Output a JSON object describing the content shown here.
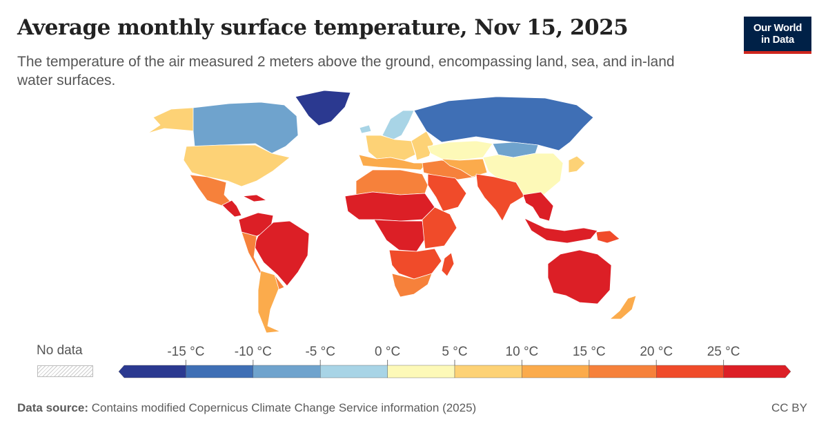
{
  "header": {
    "title": "Average monthly surface temperature, Nov 15, 2025",
    "subtitle": "The temperature of the air measured 2 meters above the ground, encompassing land, sea, and in-land water surfaces."
  },
  "logo": {
    "line1": "Our World",
    "line2": "in Data"
  },
  "legend": {
    "no_data_label": "No data",
    "ticks": [
      "-15 °C",
      "-10 °C",
      "-5 °C",
      "0 °C",
      "5 °C",
      "10 °C",
      "15 °C",
      "20 °C",
      "25 °C"
    ],
    "bin_colors": [
      "#2b3990",
      "#3f6fb5",
      "#6fa3cd",
      "#a8d4e6",
      "#fdf9b8",
      "#fdd276",
      "#fbab4c",
      "#f6813b",
      "#f04b2a",
      "#dc1f26"
    ]
  },
  "regions": [
    {
      "name": "Greenland",
      "bin": 0
    },
    {
      "name": "Canada",
      "bin": 2
    },
    {
      "name": "Alaska",
      "bin": 5
    },
    {
      "name": "United States",
      "bin": 5
    },
    {
      "name": "Mexico",
      "bin": 7
    },
    {
      "name": "Central America",
      "bin": 9
    },
    {
      "name": "Caribbean",
      "bin": 9
    },
    {
      "name": "Brazil",
      "bin": 9
    },
    {
      "name": "Northern South America",
      "bin": 9
    },
    {
      "name": "Andes",
      "bin": 7
    },
    {
      "name": "Southern South America",
      "bin": 6
    },
    {
      "name": "Iceland",
      "bin": 3
    },
    {
      "name": "Scandinavia",
      "bin": 3
    },
    {
      "name": "Western Europe",
      "bin": 5
    },
    {
      "name": "Southern Europe",
      "bin": 6
    },
    {
      "name": "Eastern Europe",
      "bin": 5
    },
    {
      "name": "Russia",
      "bin": 1
    },
    {
      "name": "Kazakhstan",
      "bin": 4
    },
    {
      "name": "Mongolia",
      "bin": 2
    },
    {
      "name": "China",
      "bin": 4
    },
    {
      "name": "Japan",
      "bin": 5
    },
    {
      "name": "Middle East",
      "bin": 7
    },
    {
      "name": "Arabian Peninsula",
      "bin": 8
    },
    {
      "name": "Central Asia",
      "bin": 6
    },
    {
      "name": "India",
      "bin": 8
    },
    {
      "name": "Southeast Asia",
      "bin": 9
    },
    {
      "name": "North Africa",
      "bin": 7
    },
    {
      "name": "Sahel",
      "bin": 9
    },
    {
      "name": "Central Africa",
      "bin": 9
    },
    {
      "name": "East Africa",
      "bin": 8
    },
    {
      "name": "Southern Africa",
      "bin": 8
    },
    {
      "name": "South Africa",
      "bin": 7
    },
    {
      "name": "Madagascar",
      "bin": 8
    },
    {
      "name": "Indonesia",
      "bin": 9
    },
    {
      "name": "Papua New Guinea",
      "bin": 8
    },
    {
      "name": "Australia",
      "bin": 9
    },
    {
      "name": "New Zealand",
      "bin": 6
    }
  ],
  "footer": {
    "source_label": "Data source:",
    "source_text": " Contains modified Copernicus Climate Change Service information (2025)",
    "license": "CC BY"
  }
}
